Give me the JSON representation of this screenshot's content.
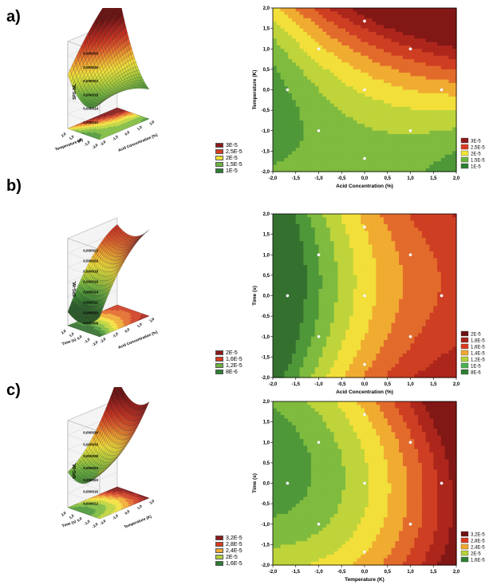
{
  "panels": [
    {
      "label": "a)",
      "surface": {
        "zlabel": "SPG-WL",
        "zticks": [
          "0,000030",
          "0,000026",
          "0,000022",
          "0,000018",
          "0,000014",
          "0,000010"
        ],
        "xlabel": "Acid Concentration (%)",
        "ylabel": "Temperature (K)",
        "xticks": [
          "2,0",
          "1,0",
          "0,0",
          "-1,0",
          "-2,0"
        ],
        "yticks": [
          "2,0",
          "1,0",
          "0,0",
          "-1,0",
          "-2,0"
        ]
      },
      "legend": [
        {
          "label": "3E-5",
          "color": "#8b1a1a"
        },
        {
          "label": "2,5E-5",
          "color": "#d93a1f"
        },
        {
          "label": "2E-5",
          "color": "#f2e23a"
        },
        {
          "label": "1,5E-5",
          "color": "#6db33f"
        },
        {
          "label": "1E-5",
          "color": "#2e7d32"
        }
      ],
      "chart_data": {
        "type": "contour",
        "xlabel": "Acid Concentration (%)",
        "ylabel": "Temperature (K)",
        "xlim": [
          -2.0,
          2.0
        ],
        "ylim": [
          -2.0,
          2.0
        ],
        "xticks": [
          "-2,0",
          "-1,5",
          "-1,0",
          "-0,5",
          "0,0",
          "0,5",
          "1,0",
          "1,5",
          "2,0"
        ],
        "yticks": [
          "2,0",
          "1,5",
          "1,0",
          "0,5",
          "0,0",
          "-0,5",
          "-1,0",
          "-1,5",
          "-2,0"
        ],
        "points": [
          [
            0,
            1.68
          ],
          [
            -1,
            1
          ],
          [
            1,
            1
          ],
          [
            -1.68,
            0
          ],
          [
            0,
            0
          ],
          [
            1.68,
            0
          ],
          [
            -1,
            -1
          ],
          [
            1,
            -1
          ],
          [
            0,
            -1.68
          ]
        ]
      }
    },
    {
      "label": "b)",
      "surface": {
        "zlabel": "SPG-WL",
        "zticks": [
          "0,000022",
          "0,000020",
          "0,000018",
          "0,000016",
          "0,000014",
          "0,000012",
          "0,000010",
          "0,000008"
        ],
        "xlabel": "Acid Concentration (%)",
        "ylabel": "Time (s)",
        "xticks": [
          "2,0",
          "1,0",
          "0,0",
          "-1,0",
          "-2,0"
        ],
        "yticks": [
          "2,0",
          "1,0",
          "0,0",
          "-1,0",
          "-2,0"
        ]
      },
      "legend": [
        {
          "label": "2E-5",
          "color": "#8b1a1a"
        },
        {
          "label": "1,6E-5",
          "color": "#d93a1f"
        },
        {
          "label": "1,2E-5",
          "color": "#6db33f"
        },
        {
          "label": "8E-6",
          "color": "#2e7d32"
        }
      ],
      "chart_data": {
        "type": "contour",
        "xlabel": "Acid Concentration (%)",
        "ylabel": "Time (s)",
        "xlim": [
          -2.0,
          2.0
        ],
        "ylim": [
          -2.0,
          2.0
        ],
        "xticks": [
          "-2,0",
          "-1,5",
          "-1,0",
          "-0,5",
          "0,0",
          "0,5",
          "1,0",
          "1,5",
          "2,0"
        ],
        "yticks": [
          "2,0",
          "1,5",
          "1,0",
          "0,5",
          "0,0",
          "-0,5",
          "-1,0",
          "-1,5",
          "-2,0"
        ],
        "points": [
          [
            0,
            1.68
          ],
          [
            -1,
            1
          ],
          [
            1,
            1
          ],
          [
            -1.68,
            0
          ],
          [
            0,
            0
          ],
          [
            1.68,
            0
          ],
          [
            -1,
            -1
          ],
          [
            1,
            -1
          ],
          [
            0,
            -1.68
          ]
        ],
        "legend_contour": [
          {
            "label": "2E-5",
            "color": "#6b1212"
          },
          {
            "label": "1,8E-5",
            "color": "#a5221a"
          },
          {
            "label": "1,6E-5",
            "color": "#d93a1f"
          },
          {
            "label": "1,4E-5",
            "color": "#f0a830"
          },
          {
            "label": "1,2E-5",
            "color": "#b5d13a"
          },
          {
            "label": "1E-5",
            "color": "#4caf50"
          },
          {
            "label": "8E-6",
            "color": "#2e7d32"
          }
        ]
      }
    },
    {
      "label": "c)",
      "surface": {
        "zlabel": "SPG-WL",
        "zticks": [
          "0,000036",
          "0,000032",
          "0,000028",
          "0,000024",
          "0,000020",
          "0,000016",
          "0,000012"
        ],
        "xlabel": "Temperature (K)",
        "ylabel": "Time (s)",
        "xticks": [
          "2,0",
          "1,0",
          "0,0",
          "-1,0",
          "-2,0"
        ],
        "yticks": [
          "2,0",
          "1,0",
          "0,0",
          "-1,0",
          "-2,0"
        ]
      },
      "legend": [
        {
          "label": "3,2E-5",
          "color": "#8b1a1a"
        },
        {
          "label": "2,8E-5",
          "color": "#d93a1f"
        },
        {
          "label": "2,4E-5",
          "color": "#f0a830"
        },
        {
          "label": "2E-5",
          "color": "#b5d13a"
        },
        {
          "label": "1,6E-5",
          "color": "#2e7d32"
        }
      ],
      "chart_data": {
        "type": "contour",
        "xlabel": "Temperature (K)",
        "ylabel": "Time (s)",
        "xlim": [
          -2.0,
          2.0
        ],
        "ylim": [
          -2.0,
          2.0
        ],
        "xticks": [
          "-2,0",
          "-1,5",
          "-1,0",
          "-0,5",
          "0,0",
          "0,5",
          "1,0",
          "1,5",
          "2,0"
        ],
        "yticks": [
          "2,0",
          "1,5",
          "1,0",
          "0,5",
          "0,0",
          "-0,5",
          "-1,0",
          "-1,5",
          "-2,0"
        ],
        "points": [
          [
            0,
            1.68
          ],
          [
            -1,
            1
          ],
          [
            1,
            1
          ],
          [
            -1.68,
            0
          ],
          [
            0,
            0
          ],
          [
            1.68,
            0
          ],
          [
            -1,
            -1
          ],
          [
            1,
            -1
          ],
          [
            0,
            -1.68
          ]
        ],
        "legend_contour": [
          {
            "label": "3,2E-5",
            "color": "#6b1212"
          },
          {
            "label": "2,8E-5",
            "color": "#d93a1f"
          },
          {
            "label": "2,4E-5",
            "color": "#f0a830"
          },
          {
            "label": "2E-5",
            "color": "#b5d13a"
          },
          {
            "label": "1,6E-5",
            "color": "#2e7d32"
          }
        ]
      }
    }
  ],
  "contour_legend_a": [
    {
      "label": "3E-5",
      "color": "#8b1a1a"
    },
    {
      "label": "2,5E-5",
      "color": "#d93a1f"
    },
    {
      "label": "2E-5",
      "color": "#f2e23a"
    },
    {
      "label": "1,5E-5",
      "color": "#6db33f"
    },
    {
      "label": "1E-5",
      "color": "#2e7d32"
    }
  ]
}
